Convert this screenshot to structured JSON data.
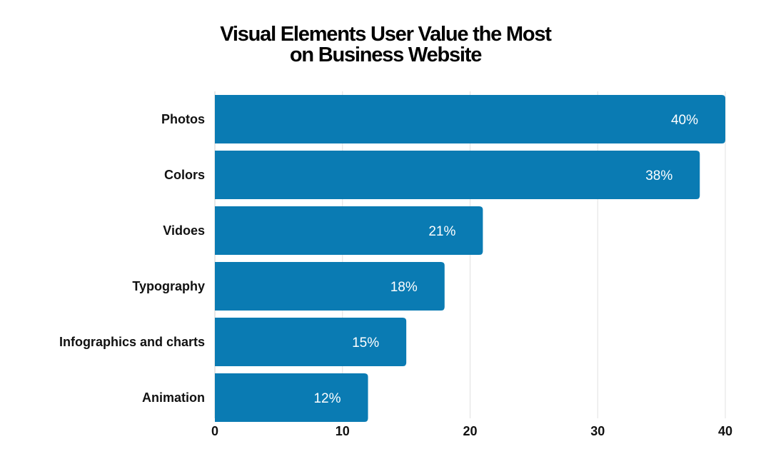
{
  "chart_data": {
    "type": "bar",
    "orientation": "horizontal",
    "title_lines": [
      "Visual Elements User Value the Most",
      "on Business Website"
    ],
    "categories": [
      "Photos",
      "Colors",
      "Vidoes",
      "Typography",
      "Infographics and charts",
      "Animation"
    ],
    "values": [
      40,
      38,
      21,
      18,
      15,
      12
    ],
    "value_labels": [
      "40%",
      "38%",
      "21%",
      "18%",
      "15%",
      "12%"
    ],
    "xlim": [
      0,
      40
    ],
    "xticks": [
      0,
      10,
      20,
      30,
      40
    ],
    "xtick_labels": [
      "0",
      "10",
      "20",
      "30",
      "40"
    ],
    "grid": true,
    "legend": "none",
    "colors": {
      "bar": "#0a7bb3",
      "grid": "#e0e0e0",
      "axis": "#cfcfcf",
      "value_text": "#ffffff",
      "text": "#111111"
    }
  }
}
